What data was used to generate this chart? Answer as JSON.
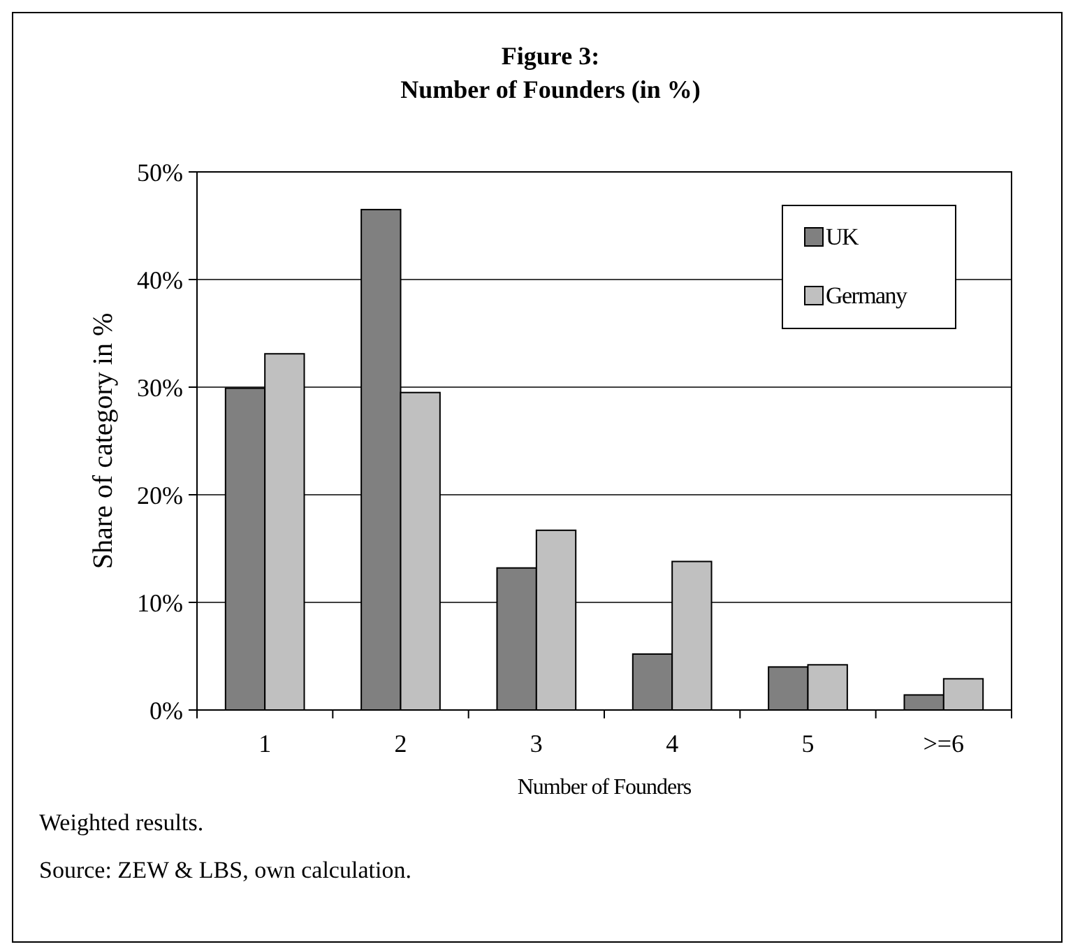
{
  "chart_data": {
    "type": "bar",
    "title": "Figure 3:",
    "subtitle": "Number of Founders (in %)",
    "xlabel": "Number of Founders",
    "ylabel": "Share of category in %",
    "categories": [
      "1",
      "2",
      "3",
      "4",
      "5",
      ">=6"
    ],
    "series": [
      {
        "name": "UK",
        "color": "#808080",
        "values": [
          29.9,
          46.5,
          13.2,
          5.2,
          4.0,
          1.4
        ]
      },
      {
        "name": "Germany",
        "color": "#c0c0c0",
        "values": [
          33.1,
          29.5,
          16.7,
          13.8,
          4.2,
          2.9
        ]
      }
    ],
    "ylim": [
      0,
      50
    ],
    "yticks": [
      {
        "value": 0,
        "label": "0%"
      },
      {
        "value": 10,
        "label": "10%"
      },
      {
        "value": 20,
        "label": "20%"
      },
      {
        "value": 30,
        "label": "30%"
      },
      {
        "value": 40,
        "label": "40%"
      },
      {
        "value": 50,
        "label": "50%"
      }
    ],
    "grid": "y",
    "legend": "top right",
    "annotations": [
      "Weighted results.",
      "Source: ZEW & LBS, own calculation."
    ]
  }
}
